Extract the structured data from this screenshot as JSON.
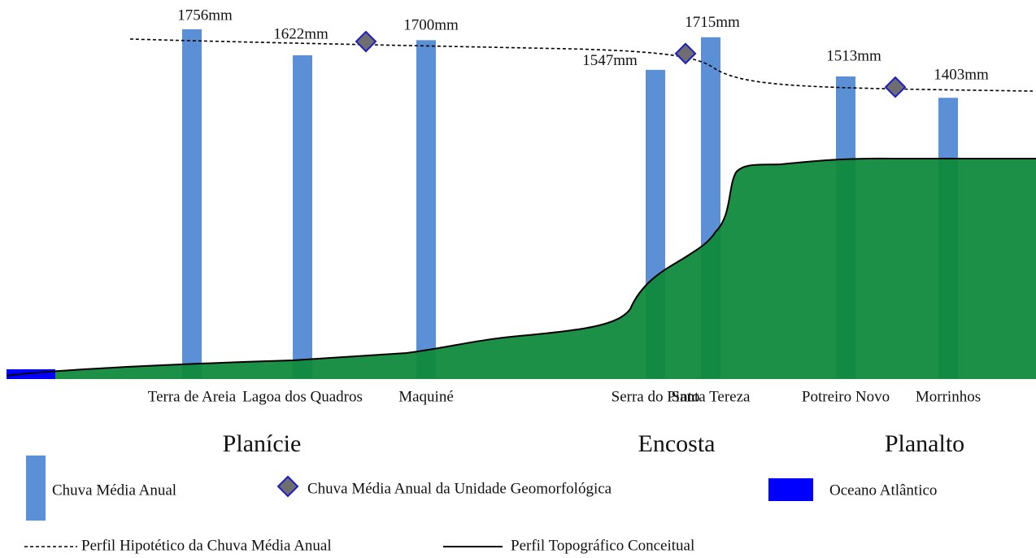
{
  "chart_data": {
    "type": "bar",
    "categories": [
      "Terra de Areia",
      "Lagoa dos Quadros",
      "Maquiné",
      "Serra do Pinto",
      "Santa Tereza",
      "Potreiro Novo",
      "Morrinhos"
    ],
    "series": [
      {
        "name": "Chuva Média Anual",
        "color": "#5b8fd6",
        "values": [
          1756,
          1622,
          1700,
          1547,
          1715,
          1513,
          1403
        ],
        "value_labels": [
          "1756mm",
          "1622mm",
          "1700mm",
          "1547mm",
          "1715mm",
          "1513mm",
          "1403mm"
        ]
      }
    ],
    "unit_means": {
      "name": "Chuva Média Anual da Unidade Geomorfológica",
      "color": "#6e6e6e",
      "edge_color": "#1c1cc8",
      "values": [
        1693,
        1631,
        1458
      ]
    },
    "units": [
      "Planície",
      "Encosta",
      "Planalto"
    ],
    "ocean": {
      "name": "Oceano Atlântico",
      "color": "#0000ff"
    },
    "terrain_color": "#0f8a3c",
    "hypothetical_profile_label": "Perfil Hipotético da Chuva Média Anual",
    "topographic_profile_label": "Perfil Topográfico Conceitual"
  }
}
